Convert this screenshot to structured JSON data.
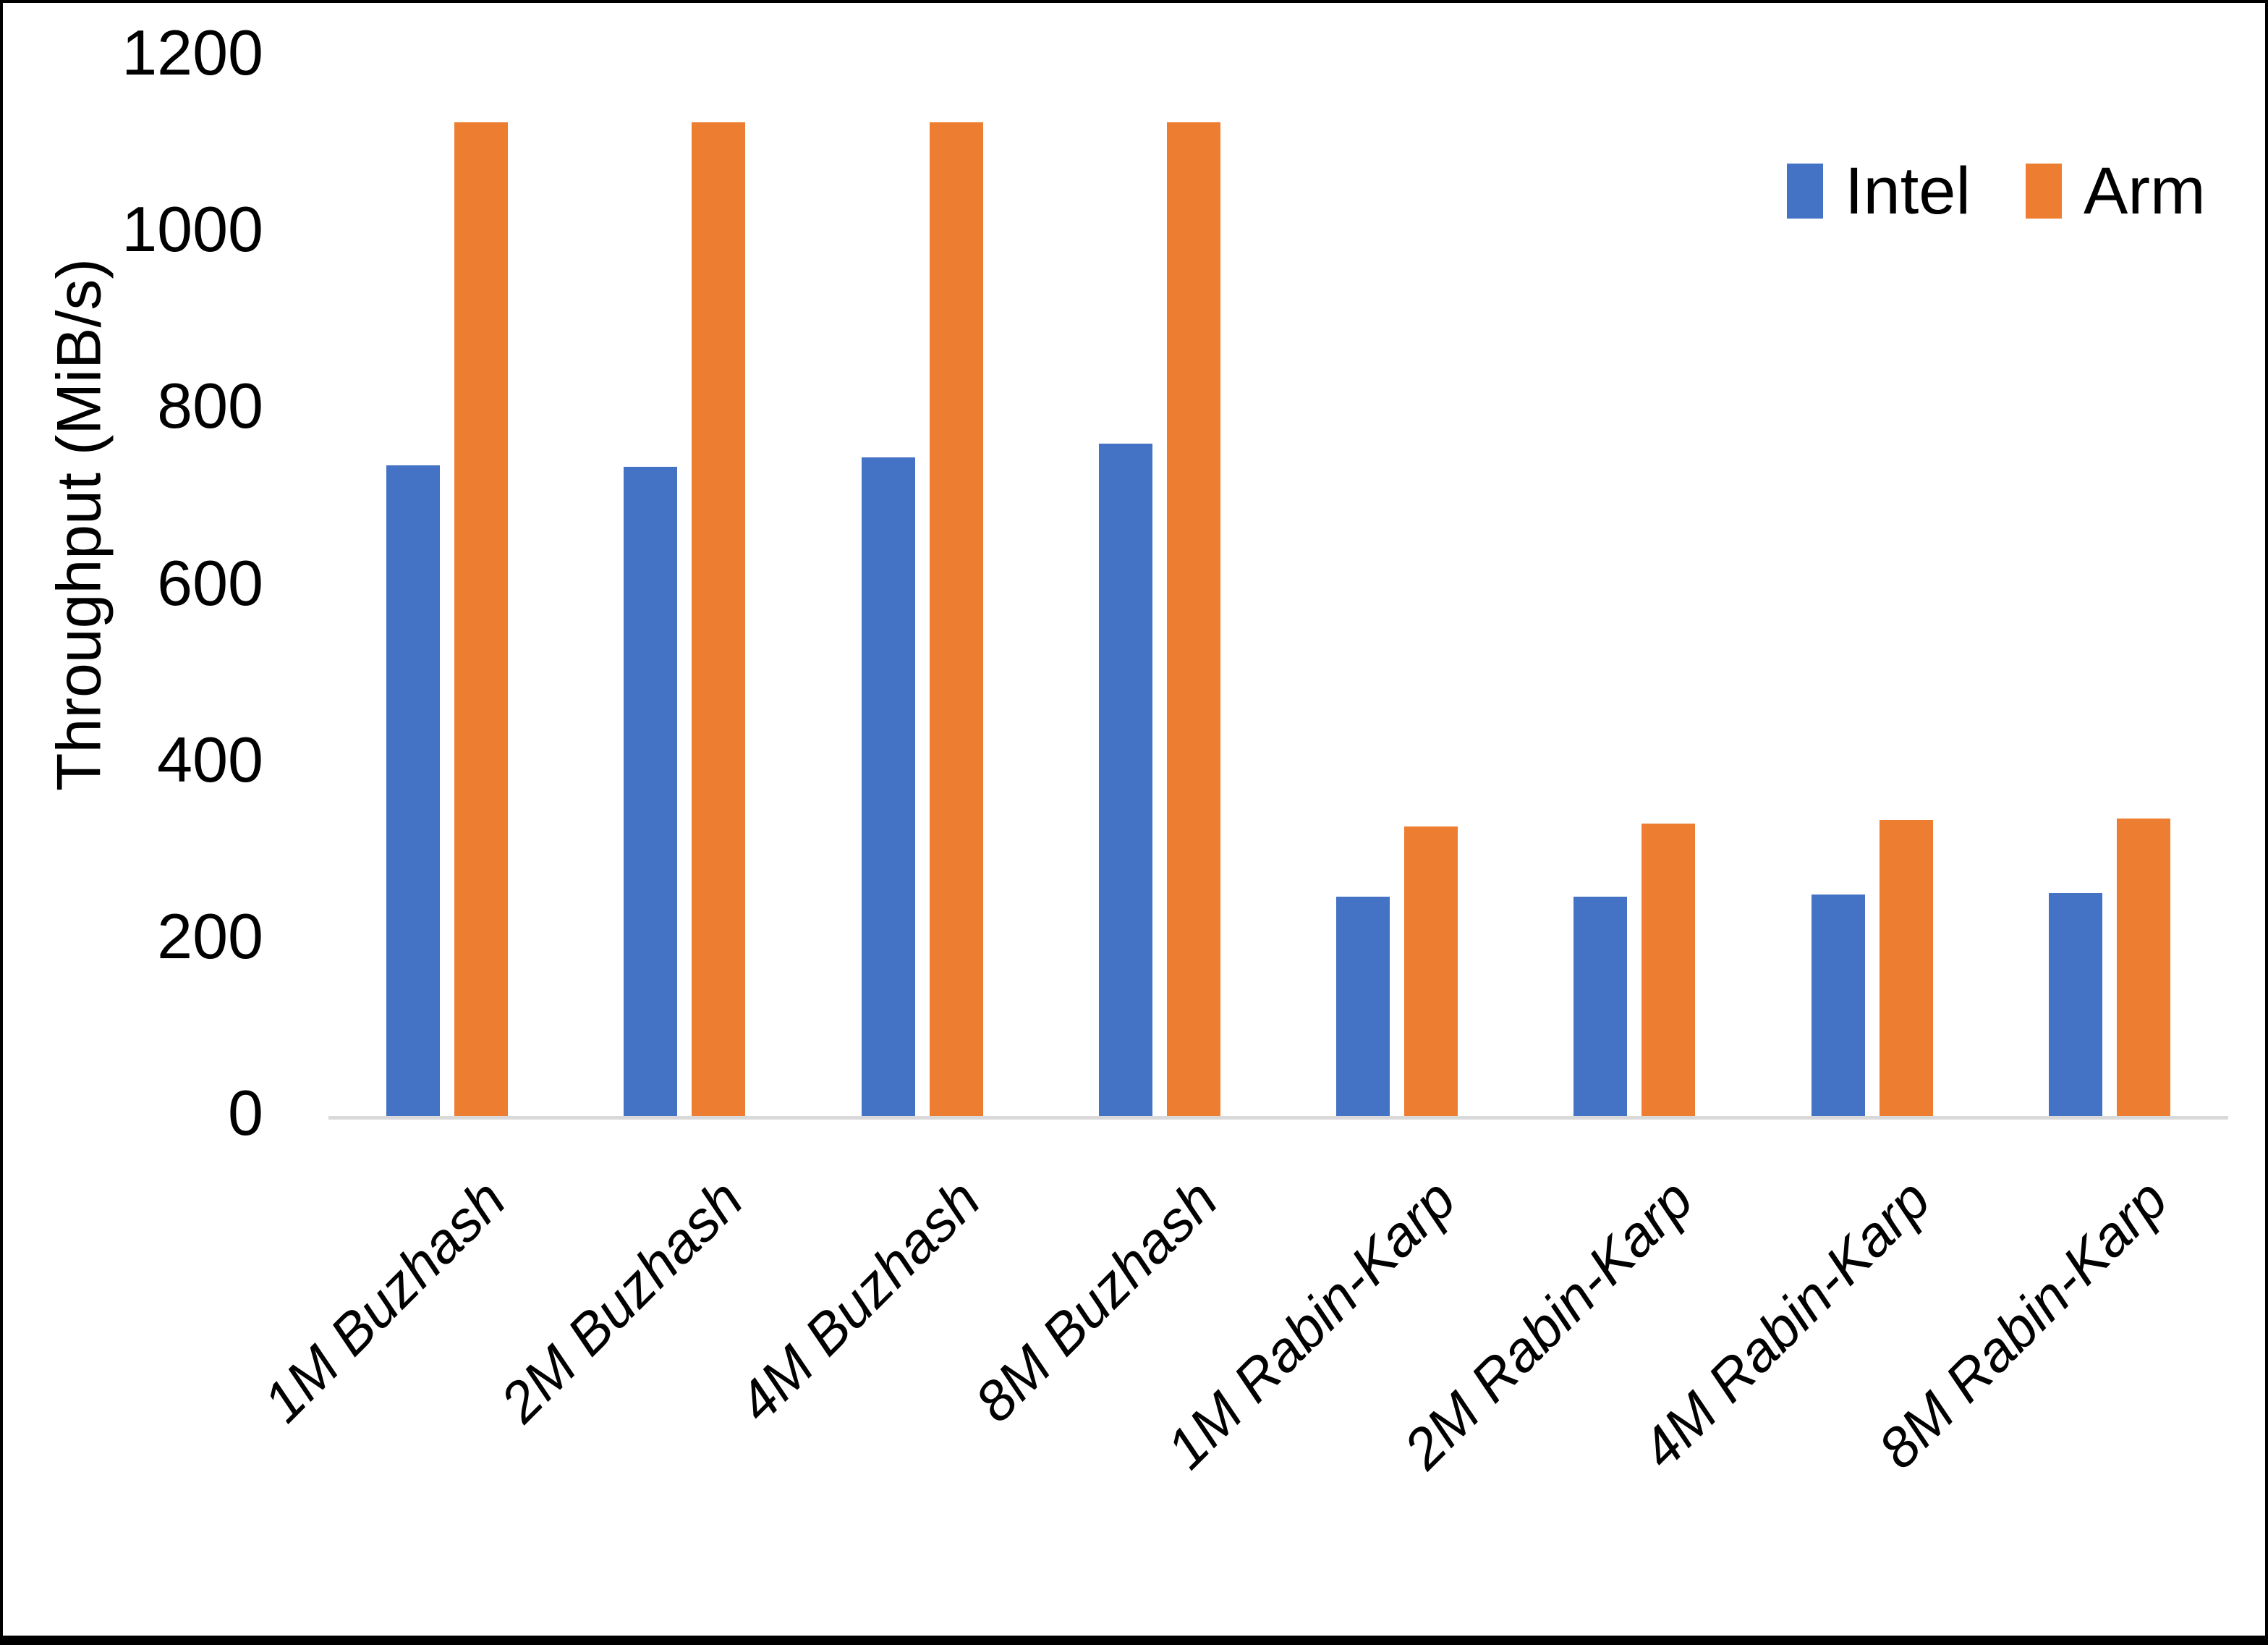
{
  "chart_data": {
    "type": "bar",
    "title": "",
    "xlabel": "",
    "ylabel": "Throughput (MiB/s)",
    "categories": [
      "1M Buzhash",
      "2M Buzhash",
      "4M Buzhash",
      "8M Buzhash",
      "1M Rabin-Karp",
      "2M Rabin-Karp",
      "4M Rabin-Karp",
      "8M Rabin-Karp"
    ],
    "series": [
      {
        "name": "Intel",
        "color": "#4472C4",
        "values": [
          736,
          735,
          745,
          761,
          248,
          248,
          251,
          252
        ]
      },
      {
        "name": "Arm",
        "color": "#ED7D31",
        "values": [
          1125,
          1125,
          1125,
          1125,
          328,
          331,
          335,
          337
        ]
      }
    ],
    "ylim": [
      0,
      1200
    ],
    "yticks": [
      0,
      200,
      400,
      600,
      800,
      1000,
      1200
    ],
    "grid": false,
    "legend_position": "top-right",
    "axis_line_color": "#D9D9D9",
    "text_color": "#000000"
  }
}
